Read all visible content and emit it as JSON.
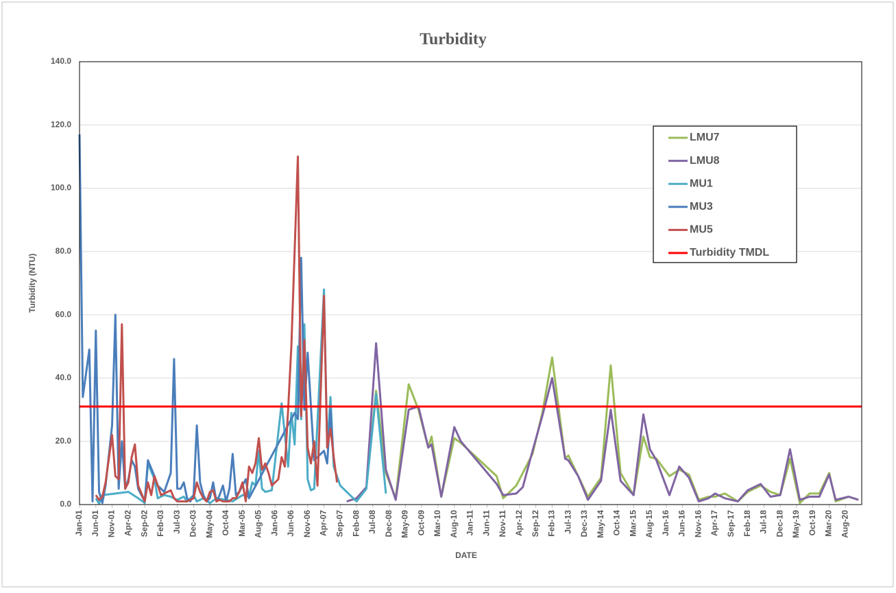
{
  "chart_data": {
    "type": "line",
    "title": "Turbidity",
    "x_label": "DATE",
    "y_label": "Turbidity (NTU)",
    "xlim": [
      "Jan-01",
      "Jan-21"
    ],
    "xticks": [
      "Jan-01",
      "Jun-01",
      "Nov-01",
      "Apr-02",
      "Sep-02",
      "Feb-03",
      "Jul-03",
      "Dec-03",
      "May-04",
      "Oct-04",
      "Mar-05",
      "Aug-05",
      "Jan-06",
      "Jun-06",
      "Nov-06",
      "Apr-07",
      "Sep-07",
      "Feb-08",
      "Jul-08",
      "Dec-08",
      "May-09",
      "Oct-09",
      "Mar-10",
      "Aug-10",
      "Jan-11",
      "Jun-11",
      "Nov-11",
      "Apr-12",
      "Sep-12",
      "Feb-13",
      "Jul-13",
      "Dec-13",
      "May-14",
      "Oct-14",
      "Mar-15",
      "Aug-15",
      "Jan-16",
      "Jun-16",
      "Nov-16",
      "Apr-17",
      "Sep-17",
      "Feb-18",
      "Jul-18",
      "Dec-18",
      "May-19",
      "Oct-19",
      "Mar-20",
      "Aug-20"
    ],
    "ylim": [
      0,
      140
    ],
    "yticks": [
      {
        "value": 0,
        "label": "0.0"
      },
      {
        "value": 20,
        "label": "20.0"
      },
      {
        "value": 40,
        "label": "40.0"
      },
      {
        "value": 60,
        "label": "60.0"
      },
      {
        "value": 80,
        "label": "80.0"
      },
      {
        "value": 100,
        "label": "100.0"
      },
      {
        "value": 120,
        "label": "120.0"
      },
      {
        "value": 140,
        "label": "140.0"
      }
    ],
    "grid": true,
    "legend": "upper right",
    "series": [
      {
        "name": "LMU7",
        "color": "#9bbb59",
        "x": [
          "Feb-08",
          "May-08",
          "Aug-08",
          "Nov-08",
          "Feb-09",
          "Jun-09",
          "Sep-09",
          "Dec-09",
          "Jan-10",
          "Apr-10",
          "Aug-10",
          "Oct-10",
          "Sep-11",
          "Nov-11",
          "Mar-12",
          "May-12",
          "Aug-12",
          "Nov-12",
          "Feb-13",
          "Jun-13",
          "Jul-13",
          "Oct-13",
          "Jan-14",
          "May-14",
          "Aug-14",
          "Nov-14",
          "Mar-15",
          "Jun-15",
          "Aug-15",
          "Oct-15",
          "Feb-16",
          "May-16",
          "Aug-16",
          "Nov-16",
          "Feb-17",
          "Apr-17",
          "Jul-17",
          "Nov-17",
          "Feb-18",
          "Jun-18",
          "Sep-18",
          "Dec-18",
          "Mar-19",
          "Jun-19",
          "Sep-19",
          "Dec-19",
          "Mar-20",
          "May-20",
          "Sep-20",
          "Dec-20"
        ],
        "values": [
          1.5,
          5.5,
          36,
          10,
          2,
          38,
          30,
          18,
          21.5,
          2.5,
          21,
          19.5,
          9,
          2,
          6,
          10,
          16,
          29,
          46.5,
          14.5,
          15.5,
          9,
          2.5,
          8.5,
          44,
          10,
          3,
          21.5,
          15,
          14.5,
          9,
          11,
          9.5,
          1.5,
          2.5,
          2.5,
          3.5,
          1,
          4,
          6,
          4,
          3,
          14.5,
          0.5,
          3.5,
          3.5,
          10,
          1,
          2.5,
          1.5
        ]
      },
      {
        "name": "LMU8",
        "color": "#8064a2",
        "x": [
          "Nov-07",
          "Feb-08",
          "May-08",
          "Aug-08",
          "Nov-08",
          "Feb-09",
          "Jun-09",
          "Sep-09",
          "Dec-09",
          "Jan-10",
          "Apr-10",
          "Aug-10",
          "Oct-10",
          "Sep-11",
          "Nov-11",
          "Mar-12",
          "May-12",
          "Aug-12",
          "Nov-12",
          "Feb-13",
          "Jun-13",
          "Jul-13",
          "Oct-13",
          "Jan-14",
          "May-14",
          "Aug-14",
          "Nov-14",
          "Mar-15",
          "Jun-15",
          "Aug-15",
          "Oct-15",
          "Feb-16",
          "May-16",
          "Aug-16",
          "Nov-16",
          "Feb-17",
          "Apr-17",
          "Jul-17",
          "Nov-17",
          "Feb-18",
          "Jun-18",
          "Sep-18",
          "Dec-18",
          "Mar-19",
          "Jun-19",
          "Sep-19",
          "Dec-19",
          "Mar-20",
          "May-20",
          "Sep-20",
          "Dec-20"
        ],
        "values": [
          1,
          2,
          5.5,
          51,
          11,
          1.5,
          30,
          31,
          18,
          19,
          2.5,
          24.5,
          20,
          6.5,
          3,
          3.5,
          5.5,
          17,
          28,
          40,
          14.5,
          14,
          9,
          1.5,
          7.5,
          30,
          7.5,
          3,
          28.5,
          17.5,
          14,
          3,
          12,
          8.5,
          1,
          2,
          3.5,
          2,
          1,
          4.5,
          6.5,
          2.5,
          3,
          17.5,
          1.5,
          2.5,
          2.5,
          9.5,
          1.5,
          2.5,
          1.5
        ]
      },
      {
        "name": "MU1",
        "color": "#4bacc6",
        "x": [
          "Jun-01",
          "Jul-01",
          "Aug-01",
          "Dec-01",
          "Apr-02",
          "Jul-02",
          "Sep-02",
          "Oct-02",
          "Dec-02",
          "Jan-03",
          "Mar-03",
          "May-03",
          "Jul-03",
          "Sep-03",
          "Oct-03",
          "Dec-03",
          "Jan-04",
          "Mar-04",
          "May-04",
          "Jul-04",
          "Oct-04",
          "Dec-04",
          "Mar-05",
          "May-05",
          "Jun-05",
          "Jul-05",
          "Aug-05",
          "Sep-05",
          "Oct-05",
          "Dec-05",
          "Mar-06",
          "May-06",
          "Jun-06",
          "Jul-06",
          "Aug-06",
          "Sep-06",
          "Oct-06",
          "Nov-06",
          "Dec-06",
          "Jan-07",
          "Apr-07",
          "May-07",
          "Jun-07",
          "Jul-07",
          "Sep-07",
          "Feb-08",
          "May-08",
          "Aug-08",
          "Nov-08"
        ],
        "values": [
          2,
          0.3,
          3,
          3.5,
          4,
          2,
          0.5,
          13,
          8,
          2,
          3,
          2.5,
          1.5,
          2.5,
          1,
          3,
          1,
          2,
          0.5,
          2,
          1.5,
          1,
          3,
          2.5,
          7,
          6,
          17,
          5,
          4,
          4.5,
          32,
          12,
          29,
          19,
          50,
          27,
          57,
          8,
          4.5,
          5,
          68,
          18,
          34,
          12,
          6,
          1,
          5,
          35,
          3.5
        ]
      },
      {
        "name": "MU3",
        "color": "#4a7ebb",
        "x": [
          "Jan-01",
          "Feb-01",
          "Apr-01",
          "May-01",
          "Jun-01",
          "Jul-01",
          "Aug-01",
          "Sep-01",
          "Nov-01",
          "Dec-01",
          "Jan-02",
          "Feb-02",
          "Mar-02",
          "Apr-02",
          "May-02",
          "Jun-02",
          "Jul-02",
          "Sep-02",
          "Oct-02",
          "Dec-02",
          "Jan-03",
          "Mar-03",
          "May-03",
          "Jun-03",
          "Jul-03",
          "Aug-03",
          "Sep-03",
          "Oct-03",
          "Nov-03",
          "Dec-03",
          "Jan-04",
          "Feb-04",
          "Mar-04",
          "Apr-04",
          "May-04",
          "Jun-04",
          "Jul-04",
          "Aug-04",
          "Sep-04",
          "Oct-04",
          "Nov-04",
          "Dec-04",
          "Jan-05",
          "Feb-05",
          "Apr-05",
          "May-05",
          "Jul-06",
          "Aug-06",
          "Sep-06",
          "Oct-06",
          "Nov-06",
          "Jan-07",
          "Apr-07",
          "May-07",
          "Jun-07",
          "Jul-07"
        ],
        "values": [
          117,
          34,
          49,
          1,
          55,
          4,
          0.5,
          6,
          25,
          60,
          5,
          20,
          5,
          8,
          14,
          12,
          5,
          1,
          14,
          9,
          6,
          4,
          10,
          46,
          5,
          5,
          7,
          2,
          1,
          3,
          25,
          7,
          3,
          1,
          2,
          7,
          1,
          3,
          6,
          1,
          5,
          16,
          3,
          4,
          8,
          2,
          29,
          27,
          78,
          30,
          48,
          14,
          17,
          13,
          30,
          14
        ]
      },
      {
        "name": "MU5",
        "color": "#c0504d",
        "x": [
          "Jun-01",
          "Jul-01",
          "Aug-01",
          "Sep-01",
          "Nov-01",
          "Dec-01",
          "Jan-02",
          "Feb-02",
          "Mar-02",
          "Apr-02",
          "May-02",
          "Jun-02",
          "Jul-02",
          "Sep-02",
          "Oct-02",
          "Nov-02",
          "Dec-02",
          "Jan-03",
          "Feb-03",
          "Apr-03",
          "May-03",
          "Jun-03",
          "Jul-03",
          "Sep-03",
          "Oct-03",
          "Dec-03",
          "Jan-04",
          "Feb-04",
          "Mar-04",
          "Apr-04",
          "May-04",
          "Jun-04",
          "Jul-04",
          "Aug-04",
          "Sep-04",
          "Oct-04",
          "Nov-04",
          "Dec-04",
          "Jan-05",
          "Feb-05",
          "Mar-05",
          "Apr-05",
          "May-05",
          "Jun-05",
          "Jul-05",
          "Aug-05",
          "Sep-05",
          "Oct-05",
          "Nov-05",
          "Dec-05",
          "Jan-06",
          "Feb-06",
          "Mar-06",
          "Apr-06",
          "May-06",
          "Jun-06",
          "Aug-06",
          "Sep-06",
          "Oct-06",
          "Nov-06",
          "Dec-06",
          "Jan-07",
          "Feb-07",
          "Apr-07",
          "May-07",
          "Jun-07",
          "Jul-07",
          "Aug-07"
        ],
        "values": [
          3,
          1.5,
          2.5,
          7,
          22,
          9,
          8,
          57,
          5,
          7,
          15,
          19,
          6,
          1,
          7,
          3,
          9,
          6,
          3,
          4,
          4.5,
          2,
          1,
          1,
          1,
          2,
          7,
          4,
          2,
          1,
          4,
          4.5,
          1,
          1.5,
          1,
          1,
          1,
          2,
          2,
          4,
          7,
          1,
          12,
          10,
          13,
          21,
          11,
          13,
          10,
          6,
          7,
          8,
          15,
          12,
          30,
          50,
          110,
          28,
          52,
          18,
          13,
          20,
          6,
          66,
          18,
          24,
          15,
          7
        ]
      }
    ],
    "tmdl": {
      "name": "Turbidity TMDL",
      "value": 31,
      "color": "#ff0000"
    }
  }
}
